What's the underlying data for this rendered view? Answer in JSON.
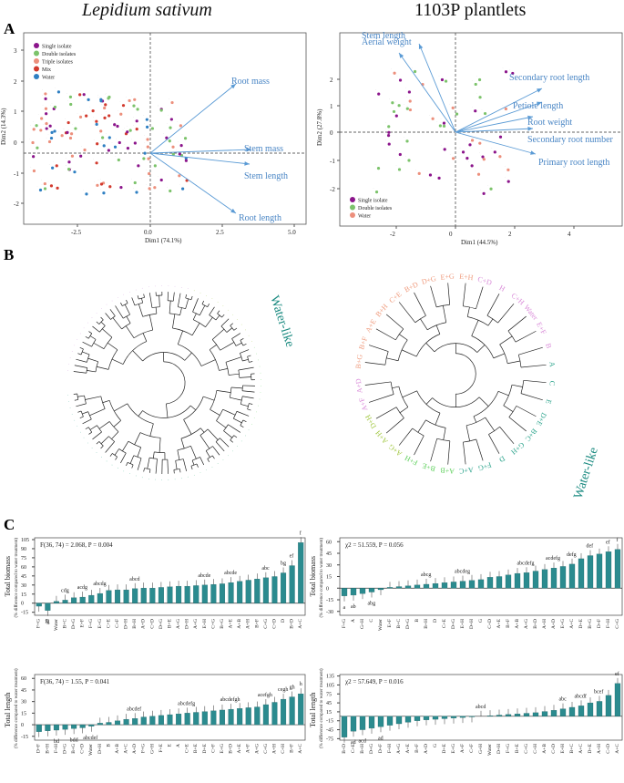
{
  "titles": {
    "left": "Lepidium sativum",
    "right": "1103P plantlets"
  },
  "panels": {
    "a": "A",
    "b": "B",
    "c": "C"
  },
  "colors": {
    "single": "#8b158b",
    "double": "#7cc36b",
    "triple": "#ec8f7c",
    "mix": "#d23a2e",
    "water": "#2e7fc2",
    "arrow": "#5b9bd5",
    "bar": "#2b8b8f"
  },
  "pcaLeft": {
    "xlabel": "Dim1 (74.1%)",
    "ylabel": "Dim2 (14.3%)",
    "xticks": [
      "-2.5",
      "0.0",
      "2.5",
      "5.0"
    ],
    "yticks": [
      "3",
      "2",
      "1",
      "0",
      "-1",
      "-2"
    ],
    "legend": [
      "Single isolate",
      "Double isolates",
      "Triple isolates",
      "Mix",
      "Water"
    ],
    "vars": [
      "Root mass",
      "Stem mass",
      "Stem length",
      "Root length"
    ]
  },
  "pcaRight": {
    "xlabel": "Dim1 (44.5%)",
    "ylabel": "Dim2 (27.8%)",
    "xticks": [
      "-2",
      "0",
      "2",
      "4"
    ],
    "yticks": [
      "2",
      "1",
      "0",
      "-1",
      "-2"
    ],
    "legend": [
      "Single isolate",
      "Double isolates",
      "Water"
    ],
    "vars": [
      "Stem length",
      "Aerial weight",
      "Secondary root length",
      "Petiole length",
      "Root weight",
      "Secondary root number",
      "Primary root length"
    ]
  },
  "dendroLeft": {
    "label": "Water-like"
  },
  "dendroRight": {
    "label": "Water-like",
    "leaves": [
      "B+G",
      "B+F",
      "A+E",
      "B+H",
      "C+E",
      "B+D",
      "D+G",
      "E+G",
      "E+H",
      "C+D",
      "H",
      "C+H",
      "Water",
      "E+F",
      "B",
      "A",
      "C",
      "E",
      "D+E",
      "B+C",
      "G+H",
      "D",
      "F+G",
      "A+C",
      "A+B",
      "B+E",
      "F+H",
      "A+G",
      "A+H",
      "D+H",
      "A+F",
      "A+D"
    ]
  },
  "barTL": {
    "stat": "F(36, 74) = 2.068, P = 0.004",
    "ylabel": "Total biomass",
    "ysub": "(% difference compared to water treatment)",
    "yticks": [
      "105",
      "90",
      "75",
      "60",
      "45",
      "30",
      "15",
      "0",
      "-15"
    ],
    "cats": [
      "F+G",
      "H",
      "Water",
      "B+C",
      "D+G",
      "E+F",
      "F+G",
      "E+G",
      "C+E",
      "C+F",
      "D+H",
      "B+H",
      "A+D",
      "C+D",
      "D+G",
      "B+E",
      "A+G",
      "D+H",
      "A+G",
      "E+H",
      "C+G",
      "B+G",
      "A+E",
      "A+B",
      "A+H",
      "B+F",
      "C+G",
      "C+D",
      "D",
      "B+D",
      "A+C"
    ],
    "values": [
      -5,
      -12,
      3,
      5,
      9,
      10,
      13,
      16,
      21,
      22,
      22,
      24,
      25,
      25,
      26,
      27,
      28,
      28,
      29,
      30,
      31,
      32,
      34,
      36,
      38,
      40,
      42,
      44,
      50,
      62,
      100
    ],
    "letters": [
      {
        "t": "fg",
        "i": 1
      },
      {
        "t": "cdg",
        "i": 3
      },
      {
        "t": "acdg",
        "i": 5
      },
      {
        "t": "abcdg",
        "i": 7
      },
      {
        "t": "abcd",
        "i": 11
      },
      {
        "t": "abcde",
        "i": 19
      },
      {
        "t": "abcde",
        "i": 22
      },
      {
        "t": "abc",
        "i": 26
      },
      {
        "t": "bg",
        "i": 28
      },
      {
        "t": "ef",
        "i": 29
      },
      {
        "t": "f",
        "i": 30
      }
    ]
  },
  "barTR": {
    "stat": "χ2 = 51.559, P = 0.056",
    "ylabel": "Total biomass",
    "ysub": "(% difference compared to water treatment)",
    "yticks": [
      "60",
      "45",
      "30",
      "15",
      "0",
      "-15",
      "-30"
    ],
    "cats": [
      "F+G",
      "A",
      "G+H",
      "C",
      "Water",
      "E+F",
      "B+C",
      "D+G",
      "B",
      "B+H",
      "D",
      "C+E",
      "D+G",
      "E+H",
      "D+H",
      "G",
      "C+D",
      "A+E",
      "B+F",
      "A+B",
      "A+G",
      "B+D",
      "A+H",
      "A+D",
      "E+G",
      "A+C",
      "D+E",
      "B+G",
      "D+F",
      "F+H",
      "C+G"
    ],
    "values": [
      -10,
      -9,
      -7,
      -5,
      -2,
      1,
      2,
      3,
      4,
      5,
      6,
      7,
      8,
      9,
      10,
      11,
      14,
      15,
      17,
      19,
      20,
      22,
      24,
      26,
      28,
      31,
      38,
      42,
      44,
      47,
      50
    ],
    "letters": [
      {
        "t": "a",
        "i": 0
      },
      {
        "t": "ab",
        "i": 1
      },
      {
        "t": "abg",
        "i": 3
      },
      {
        "t": "abcg",
        "i": 9
      },
      {
        "t": "abcdeg",
        "i": 13
      },
      {
        "t": "abcdefg",
        "i": 20
      },
      {
        "t": "acdefg",
        "i": 23
      },
      {
        "t": "defg",
        "i": 25
      },
      {
        "t": "def",
        "i": 27
      },
      {
        "t": "ef",
        "i": 29
      },
      {
        "t": "f",
        "i": 30
      }
    ]
  },
  "barBL": {
    "stat": "F(36, 74) = 1.55, P = 0.041",
    "ylabel": "Total length",
    "ysub": "(% difference compared to water treatment)",
    "yticks": [
      "60",
      "45",
      "30",
      "15",
      "0",
      "-15"
    ],
    "cats": [
      "D+F",
      "B+H",
      "F+H",
      "D+G",
      "B+G",
      "C+D",
      "Water",
      "D+H",
      "B",
      "A+B",
      "A+C",
      "A+D",
      "F+G",
      "G+H",
      "F+E",
      "E",
      "A",
      "C+E",
      "B+E",
      "D+E",
      "C+F",
      "E+G",
      "B+D",
      "A+E",
      "A+F",
      "A+G",
      "C+G",
      "A+H",
      "C+H",
      "B+F",
      "A+C"
    ],
    "values": [
      -9,
      -8,
      -7,
      -6,
      -5,
      -4,
      -2,
      2,
      3,
      5,
      7,
      8,
      10,
      11,
      12,
      13,
      14,
      15,
      16,
      17,
      18,
      19,
      20,
      21,
      22,
      23,
      26,
      29,
      33,
      36,
      40
    ],
    "letters": [
      {
        "t": "bd",
        "i": 2
      },
      {
        "t": "bdd",
        "i": 4
      },
      {
        "t": "abcdef",
        "i": 6
      },
      {
        "t": "abcdef",
        "i": 11
      },
      {
        "t": "abcdefg",
        "i": 17
      },
      {
        "t": "abcdefgh",
        "i": 22
      },
      {
        "t": "acefgh",
        "i": 26
      },
      {
        "t": "cegh",
        "i": 28
      },
      {
        "t": "gh",
        "i": 29
      },
      {
        "t": "h",
        "i": 30
      }
    ]
  },
  "barBR": {
    "stat": "χ2 = 57.649, P = 0.016",
    "ylabel": "Total length",
    "ysub": "(% difference compared to water treatment)",
    "yticks": [
      "135",
      "105",
      "75",
      "45",
      "15",
      "-15",
      "-45",
      "-75"
    ],
    "cats": [
      "B+D",
      "C+E",
      "B+H",
      "D+G",
      "D+F",
      "F+H",
      "A+G",
      "A+E",
      "B+F",
      "A+D",
      "G",
      "D+E",
      "E+G",
      "A+F",
      "C+F",
      "G+H",
      "Water",
      "D+H",
      "F+G",
      "B+E",
      "C+G",
      "C+H",
      "A+B",
      "C+D",
      "E+H",
      "B+C",
      "A+C",
      "D+E",
      "A+H",
      "C+D",
      "A+C"
    ],
    "values": [
      -70,
      -50,
      -45,
      -40,
      -35,
      -30,
      -25,
      -20,
      -15,
      -12,
      -10,
      -8,
      -6,
      -4,
      -2,
      0,
      2,
      4,
      6,
      8,
      10,
      12,
      16,
      20,
      25,
      30,
      35,
      45,
      50,
      70,
      110
    ],
    "letters": [
      {
        "t": "ad",
        "i": 1
      },
      {
        "t": "acd",
        "i": 2
      },
      {
        "t": "ad",
        "i": 4
      },
      {
        "t": "abcd",
        "i": 15
      },
      {
        "t": "abc",
        "i": 24
      },
      {
        "t": "abcdf",
        "i": 26
      },
      {
        "t": "bcef",
        "i": 28
      },
      {
        "t": "ef",
        "i": 30
      }
    ]
  }
}
